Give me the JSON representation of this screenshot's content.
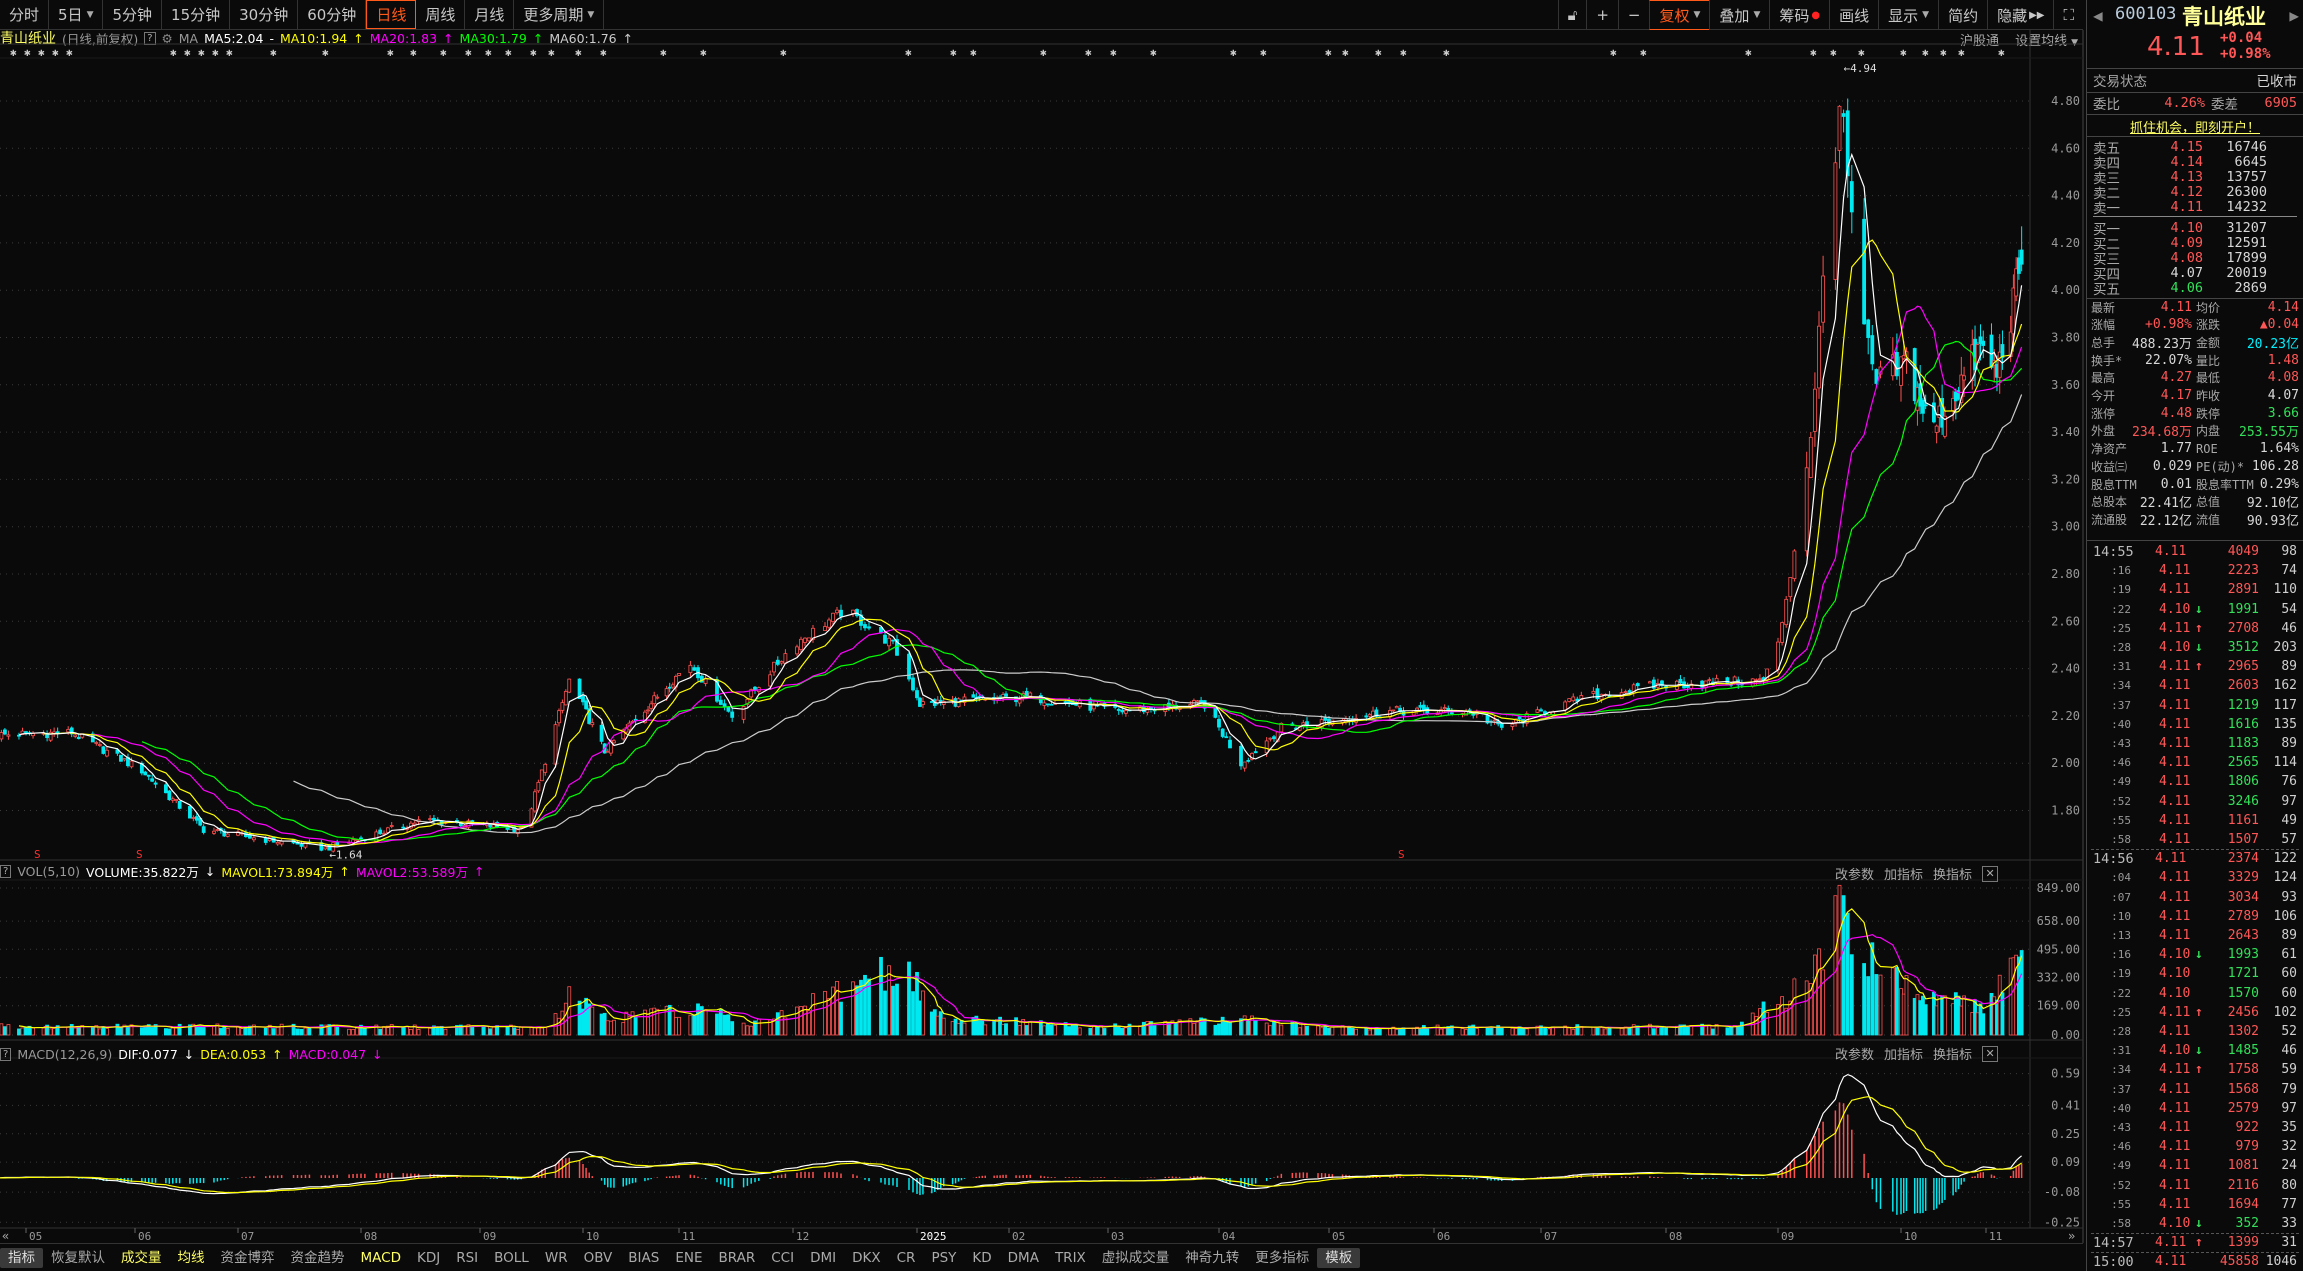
{
  "toolbar": {
    "periods": [
      {
        "label": "分时"
      },
      {
        "label": "5日",
        "dropdown": true
      },
      {
        "label": "5分钟"
      },
      {
        "label": "15分钟"
      },
      {
        "label": "30分钟"
      },
      {
        "label": "60分钟"
      },
      {
        "label": "日线",
        "active": true
      },
      {
        "label": "周线"
      },
      {
        "label": "月线"
      },
      {
        "label": "更多周期",
        "dropdown": true
      }
    ],
    "tools": [
      {
        "label": "复权",
        "active": true,
        "dropdown": true
      },
      {
        "label": "叠加",
        "dropdown": true
      },
      {
        "label": "筹码",
        "dot": true
      },
      {
        "label": "画线"
      },
      {
        "label": "显示",
        "dropdown": true
      },
      {
        "label": "简约"
      },
      {
        "label": "隐藏"
      }
    ],
    "sub": {
      "hsgt": "沪股通",
      "set_ma": "设置均线"
    }
  },
  "info": {
    "name": "青山纸业",
    "mode": "(日线,前复权)",
    "ma_label": "MA",
    "ma5": "MA5:2.04",
    "ma10": "MA10:1.94",
    "ma20": "MA20:1.83",
    "ma30": "MA30:1.79",
    "ma60": "MA60:1.76"
  },
  "volume_header": {
    "name": "VOL(5,10)",
    "volume": "VOLUME:35.822万",
    "mavol1": "MAVOL1:73.894万",
    "mavol2": "MAVOL2:53.589万"
  },
  "macd_header": {
    "name": "MACD(12,26,9)",
    "dif": "DIF:0.077",
    "dea": "DEA:0.053",
    "macd": "MACD:0.047"
  },
  "panel_tools": {
    "change": "改参数",
    "add": "加指标",
    "swap": "换指标"
  },
  "colors": {
    "up": "#ff5050",
    "down": "#00e8f0",
    "ma5": "#ffffff",
    "ma10": "#ffff00",
    "ma20": "#ff00ff",
    "ma30": "#00ff00",
    "ma60": "#cccccc",
    "accent": "#ff5a1a"
  },
  "chart_data": [
    {
      "type": "candlestick",
      "title": "青山纸业 日线 前复权",
      "ylim": [
        1.55,
        4.98
      ],
      "y_ticks": [
        "4.80",
        "4.60",
        "4.40",
        "4.20",
        "4.00",
        "3.80",
        "3.60",
        "3.40",
        "3.20",
        "3.00",
        "2.80",
        "2.60",
        "2.40",
        "2.20",
        "2.00",
        "1.80"
      ],
      "x_ticks": [
        {
          "label": "05",
          "date": "2024-05-01"
        },
        {
          "label": "06",
          "date": "2024-06-01"
        },
        {
          "label": "07",
          "date": "2024-07-01"
        },
        {
          "label": "08",
          "date": "2024-08-01"
        },
        {
          "label": "09",
          "date": "2024-09-01"
        },
        {
          "label": "10",
          "date": "2024-10-01"
        },
        {
          "label": "11",
          "date": "2024-11-01"
        },
        {
          "label": "12",
          "date": "2024-12-01"
        },
        {
          "label": "2025",
          "date": "2025-01-01"
        },
        {
          "label": "02",
          "date": "2025-02-01"
        },
        {
          "label": "03",
          "date": "2025-03-01"
        },
        {
          "label": "04",
          "date": "2025-04-01"
        },
        {
          "label": "05",
          "date": "2025-05-01"
        },
        {
          "label": "06",
          "date": "2025-06-01"
        },
        {
          "label": "07",
          "date": "2025-07-01"
        },
        {
          "label": "08",
          "date": "2025-08-01"
        },
        {
          "label": "09",
          "date": "2025-09-01"
        },
        {
          "label": "10",
          "date": "2025-10-01"
        },
        {
          "label": "11",
          "date": "2025-11-01"
        }
      ],
      "close_path": [
        [
          "2024-04-23",
          2.12
        ],
        [
          "2024-05-14",
          2.13
        ],
        [
          "2024-06-03",
          1.97
        ],
        [
          "2024-06-21",
          1.72
        ],
        [
          "2024-07-23",
          1.64
        ],
        [
          "2024-08-17",
          1.76
        ],
        [
          "2024-09-14",
          1.72
        ],
        [
          "2024-09-27",
          2.35
        ],
        [
          "2024-10-08",
          2.05
        ],
        [
          "2024-11-04",
          2.42
        ],
        [
          "2024-11-15",
          2.2
        ],
        [
          "2024-12-01",
          2.5
        ],
        [
          "2024-12-14",
          2.65
        ],
        [
          "2024-12-26",
          2.5
        ],
        [
          "2025-01-02",
          2.25
        ],
        [
          "2025-02-07",
          2.28
        ],
        [
          "2025-03-04",
          2.22
        ],
        [
          "2025-03-28",
          2.25
        ],
        [
          "2025-04-07",
          2.0
        ],
        [
          "2025-04-18",
          2.15
        ],
        [
          "2025-05-19",
          2.22
        ],
        [
          "2025-06-11",
          2.22
        ],
        [
          "2025-06-20",
          2.15
        ],
        [
          "2025-07-12",
          2.28
        ],
        [
          "2025-07-30",
          2.33
        ],
        [
          "2025-08-28",
          2.35
        ],
        [
          "2025-09-01",
          2.5
        ],
        [
          "2025-09-06",
          3.0
        ],
        [
          "2025-09-10",
          3.55
        ],
        [
          "2025-09-13",
          4.3
        ],
        [
          "2025-09-16",
          4.8
        ],
        [
          "2025-09-19",
          4.3
        ],
        [
          "2025-09-22",
          3.8
        ],
        [
          "2025-09-25",
          3.6
        ],
        [
          "2025-10-03",
          3.7
        ],
        [
          "2025-10-12",
          3.4
        ],
        [
          "2025-10-30",
          3.75
        ],
        [
          "2025-11-05",
          3.65
        ],
        [
          "2025-11-10",
          3.9
        ],
        [
          "2025-11-14",
          4.11
        ]
      ],
      "last_bar": {
        "open": 4.17,
        "high": 4.27,
        "low": 4.08,
        "close": 4.11
      },
      "annotations": [
        {
          "text": "4.94",
          "date": "2025-09-16",
          "price": 4.94
        },
        {
          "text": "1.64",
          "date": "2024-07-23",
          "price": 1.64
        }
      ]
    },
    {
      "type": "bar",
      "title": "VOL(5,10)",
      "y_ticks": [
        "849.00",
        "658.00",
        "495.00",
        "332.00",
        "169.00",
        "0.00"
      ],
      "ylim": [
        0,
        849
      ],
      "volume_path": [
        [
          "2024-04-23",
          60
        ],
        [
          "2024-09-20",
          55
        ],
        [
          "2024-09-27",
          260
        ],
        [
          "2024-10-10",
          120
        ],
        [
          "2024-11-05",
          180
        ],
        [
          "2024-11-20",
          90
        ],
        [
          "2024-12-10",
          260
        ],
        [
          "2024-12-26",
          480
        ],
        [
          "2025-01-10",
          120
        ],
        [
          "2025-03-01",
          60
        ],
        [
          "2025-04-07",
          110
        ],
        [
          "2025-05-01",
          50
        ],
        [
          "2025-08-20",
          60
        ],
        [
          "2025-09-05",
          300
        ],
        [
          "2025-09-16",
          849
        ],
        [
          "2025-09-25",
          520
        ],
        [
          "2025-10-10",
          250
        ],
        [
          "2025-10-30",
          200
        ],
        [
          "2025-11-14",
          488
        ]
      ]
    },
    {
      "type": "macd",
      "title": "MACD(12,26,9)",
      "y_ticks": [
        "0.59",
        "0.41",
        "0.25",
        "0.09",
        "-0.08",
        "-0.25"
      ],
      "ylim": [
        -0.3,
        0.65
      ]
    }
  ],
  "quote": {
    "code": "600103",
    "name": "青山纸业",
    "price": "4.11",
    "change": "+0.04",
    "pct": "+0.98%",
    "status_label": "交易状态",
    "status": "已收市",
    "wb_label": "委比",
    "wb": "4.26%",
    "wc_label": "委差",
    "wc": "6905",
    "promo": "抓住机会，即刻开户！",
    "asks": [
      {
        "l": "卖五",
        "p": "4.15",
        "v": "16746"
      },
      {
        "l": "卖四",
        "p": "4.14",
        "v": "6645"
      },
      {
        "l": "卖三",
        "p": "4.13",
        "v": "13757"
      },
      {
        "l": "卖二",
        "p": "4.12",
        "v": "26300"
      },
      {
        "l": "卖一",
        "p": "4.11",
        "v": "14232"
      }
    ],
    "bids": [
      {
        "l": "买一",
        "p": "4.10",
        "v": "31207",
        "c": "red"
      },
      {
        "l": "买二",
        "p": "4.09",
        "v": "12591",
        "c": "red"
      },
      {
        "l": "买三",
        "p": "4.08",
        "v": "17899",
        "c": "red"
      },
      {
        "l": "买四",
        "p": "4.07",
        "v": "20019",
        "c": "wht"
      },
      {
        "l": "买五",
        "p": "4.06",
        "v": "2869",
        "c": "grn"
      }
    ],
    "stats": [
      [
        {
          "l": "最新",
          "v": "4.11",
          "c": "red"
        },
        {
          "l": "均价",
          "v": "4.14",
          "c": "red"
        }
      ],
      [
        {
          "l": "涨幅",
          "v": "+0.98%",
          "c": "red"
        },
        {
          "l": "涨跌",
          "v": "▲0.04",
          "c": "red"
        }
      ],
      [
        {
          "l": "总手",
          "v": "488.23万",
          "c": "wht"
        },
        {
          "l": "金额",
          "v": "20.23亿",
          "c": "cyan"
        }
      ],
      [
        {
          "l": "换手*",
          "v": "22.07%",
          "c": "wht"
        },
        {
          "l": "量比",
          "v": "1.48",
          "c": "red"
        }
      ],
      [
        {
          "l": "最高",
          "v": "4.27",
          "c": "red"
        },
        {
          "l": "最低",
          "v": "4.08",
          "c": "red"
        }
      ],
      [
        {
          "l": "今开",
          "v": "4.17",
          "c": "red"
        },
        {
          "l": "昨收",
          "v": "4.07",
          "c": "wht"
        }
      ],
      [
        {
          "l": "涨停",
          "v": "4.48",
          "c": "red"
        },
        {
          "l": "跌停",
          "v": "3.66",
          "c": "grn"
        }
      ],
      [
        {
          "l": "外盘",
          "v": "234.68万",
          "c": "red"
        },
        {
          "l": "内盘",
          "v": "253.55万",
          "c": "grn"
        }
      ],
      [
        {
          "l": "净资产",
          "v": "1.77",
          "c": "wht"
        },
        {
          "l": "ROE",
          "v": "1.64%",
          "c": "wht"
        }
      ],
      [
        {
          "l": "收益㈢",
          "v": "0.029",
          "c": "wht"
        },
        {
          "l": "PE(动)*",
          "v": "106.28",
          "c": "wht"
        }
      ],
      [
        {
          "l": "股息TTM",
          "v": "0.01",
          "c": "wht"
        },
        {
          "l": "股息率TTM",
          "v": "0.29%",
          "c": "wht"
        }
      ],
      [
        {
          "l": "总股本",
          "v": "22.41亿",
          "c": "wht"
        },
        {
          "l": "总值",
          "v": "92.10亿",
          "c": "wht"
        }
      ],
      [
        {
          "l": "流通股",
          "v": "22.12亿",
          "c": "wht"
        },
        {
          "l": "流值",
          "v": "90.93亿",
          "c": "wht"
        }
      ]
    ],
    "ticks": [
      {
        "t": "14:55",
        "p": "4.11",
        "v": "4049",
        "n": "98",
        "vc": "red"
      },
      {
        "t": ":16",
        "p": "4.11",
        "v": "2223",
        "n": "74",
        "vc": "red"
      },
      {
        "t": ":19",
        "p": "4.11",
        "v": "2891",
        "n": "110",
        "vc": "red"
      },
      {
        "t": ":22",
        "p": "4.10",
        "a": "down",
        "v": "1991",
        "n": "54",
        "vc": "grn"
      },
      {
        "t": ":25",
        "p": "4.11",
        "a": "up",
        "v": "2708",
        "n": "46",
        "vc": "red"
      },
      {
        "t": ":28",
        "p": "4.10",
        "a": "down",
        "v": "3512",
        "n": "203",
        "vc": "grn"
      },
      {
        "t": ":31",
        "p": "4.11",
        "a": "up",
        "v": "2965",
        "n": "89",
        "vc": "red"
      },
      {
        "t": ":34",
        "p": "4.11",
        "v": "2603",
        "n": "162",
        "vc": "red"
      },
      {
        "t": ":37",
        "p": "4.11",
        "v": "1219",
        "n": "117",
        "vc": "grn"
      },
      {
        "t": ":40",
        "p": "4.11",
        "v": "1616",
        "n": "135",
        "vc": "grn"
      },
      {
        "t": ":43",
        "p": "4.11",
        "v": "1183",
        "n": "89",
        "vc": "grn"
      },
      {
        "t": ":46",
        "p": "4.11",
        "v": "2565",
        "n": "114",
        "vc": "grn"
      },
      {
        "t": ":49",
        "p": "4.11",
        "v": "1806",
        "n": "76",
        "vc": "grn"
      },
      {
        "t": ":52",
        "p": "4.11",
        "v": "3246",
        "n": "97",
        "vc": "grn"
      },
      {
        "t": ":55",
        "p": "4.11",
        "v": "1161",
        "n": "49",
        "vc": "red"
      },
      {
        "t": ":58",
        "p": "4.11",
        "v": "1507",
        "n": "57",
        "vc": "red"
      },
      {
        "t": "14:56",
        "p": "4.11",
        "v": "2374",
        "n": "122",
        "vc": "red",
        "sep": true
      },
      {
        "t": ":04",
        "p": "4.11",
        "v": "3329",
        "n": "124",
        "vc": "red"
      },
      {
        "t": ":07",
        "p": "4.11",
        "v": "3034",
        "n": "93",
        "vc": "red"
      },
      {
        "t": ":10",
        "p": "4.11",
        "v": "2789",
        "n": "106",
        "vc": "red"
      },
      {
        "t": ":13",
        "p": "4.11",
        "v": "2643",
        "n": "89",
        "vc": "red"
      },
      {
        "t": ":16",
        "p": "4.10",
        "a": "down",
        "v": "1993",
        "n": "61",
        "vc": "grn"
      },
      {
        "t": ":19",
        "p": "4.10",
        "v": "1721",
        "n": "60",
        "vc": "grn"
      },
      {
        "t": ":22",
        "p": "4.10",
        "v": "1570",
        "n": "60",
        "vc": "grn"
      },
      {
        "t": ":25",
        "p": "4.11",
        "a": "up",
        "v": "2456",
        "n": "102",
        "vc": "red"
      },
      {
        "t": ":28",
        "p": "4.11",
        "v": "1302",
        "n": "52",
        "vc": "red"
      },
      {
        "t": ":31",
        "p": "4.10",
        "a": "down",
        "v": "1485",
        "n": "46",
        "vc": "grn"
      },
      {
        "t": ":34",
        "p": "4.11",
        "a": "up",
        "v": "1758",
        "n": "59",
        "vc": "red"
      },
      {
        "t": ":37",
        "p": "4.11",
        "v": "1568",
        "n": "79",
        "vc": "red"
      },
      {
        "t": ":40",
        "p": "4.11",
        "v": "2579",
        "n": "97",
        "vc": "red"
      },
      {
        "t": ":43",
        "p": "4.11",
        "v": "922",
        "n": "35",
        "vc": "red"
      },
      {
        "t": ":46",
        "p": "4.11",
        "v": "979",
        "n": "32",
        "vc": "red"
      },
      {
        "t": ":49",
        "p": "4.11",
        "v": "1081",
        "n": "24",
        "vc": "red"
      },
      {
        "t": ":52",
        "p": "4.11",
        "v": "2116",
        "n": "80",
        "vc": "red"
      },
      {
        "t": ":55",
        "p": "4.11",
        "v": "1694",
        "n": "77",
        "vc": "red"
      },
      {
        "t": ":58",
        "p": "4.10",
        "a": "down",
        "v": "352",
        "n": "33",
        "vc": "grn"
      },
      {
        "t": "14:57",
        "p": "4.11",
        "a": "up",
        "v": "1399",
        "n": "31",
        "vc": "red",
        "sep": true
      },
      {
        "t": "15:00",
        "p": "4.11",
        "v": "45858",
        "n": "1046",
        "vc": "red",
        "sep": true
      }
    ]
  },
  "tabs": [
    {
      "label": "指标",
      "sel": true
    },
    {
      "label": "恢复默认"
    },
    {
      "label": "成交量",
      "c": "#ffff66"
    },
    {
      "label": "均线",
      "c": "#ffff66"
    },
    {
      "label": "资金博弈"
    },
    {
      "label": "资金趋势"
    },
    {
      "label": "MACD",
      "c": "#ffff66"
    },
    {
      "label": "KDJ"
    },
    {
      "label": "RSI"
    },
    {
      "label": "BOLL"
    },
    {
      "label": "WR"
    },
    {
      "label": "OBV"
    },
    {
      "label": "BIAS"
    },
    {
      "label": "ENE"
    },
    {
      "label": "BRAR"
    },
    {
      "label": "CCI"
    },
    {
      "label": "DMI"
    },
    {
      "label": "DKX"
    },
    {
      "label": "CR"
    },
    {
      "label": "PSY"
    },
    {
      "label": "KD"
    },
    {
      "label": "DMA"
    },
    {
      "label": "TRIX"
    },
    {
      "label": "虚拟成交量"
    },
    {
      "label": "神奇九转"
    },
    {
      "label": "更多指标"
    },
    {
      "label": "模板",
      "sel": true
    }
  ]
}
